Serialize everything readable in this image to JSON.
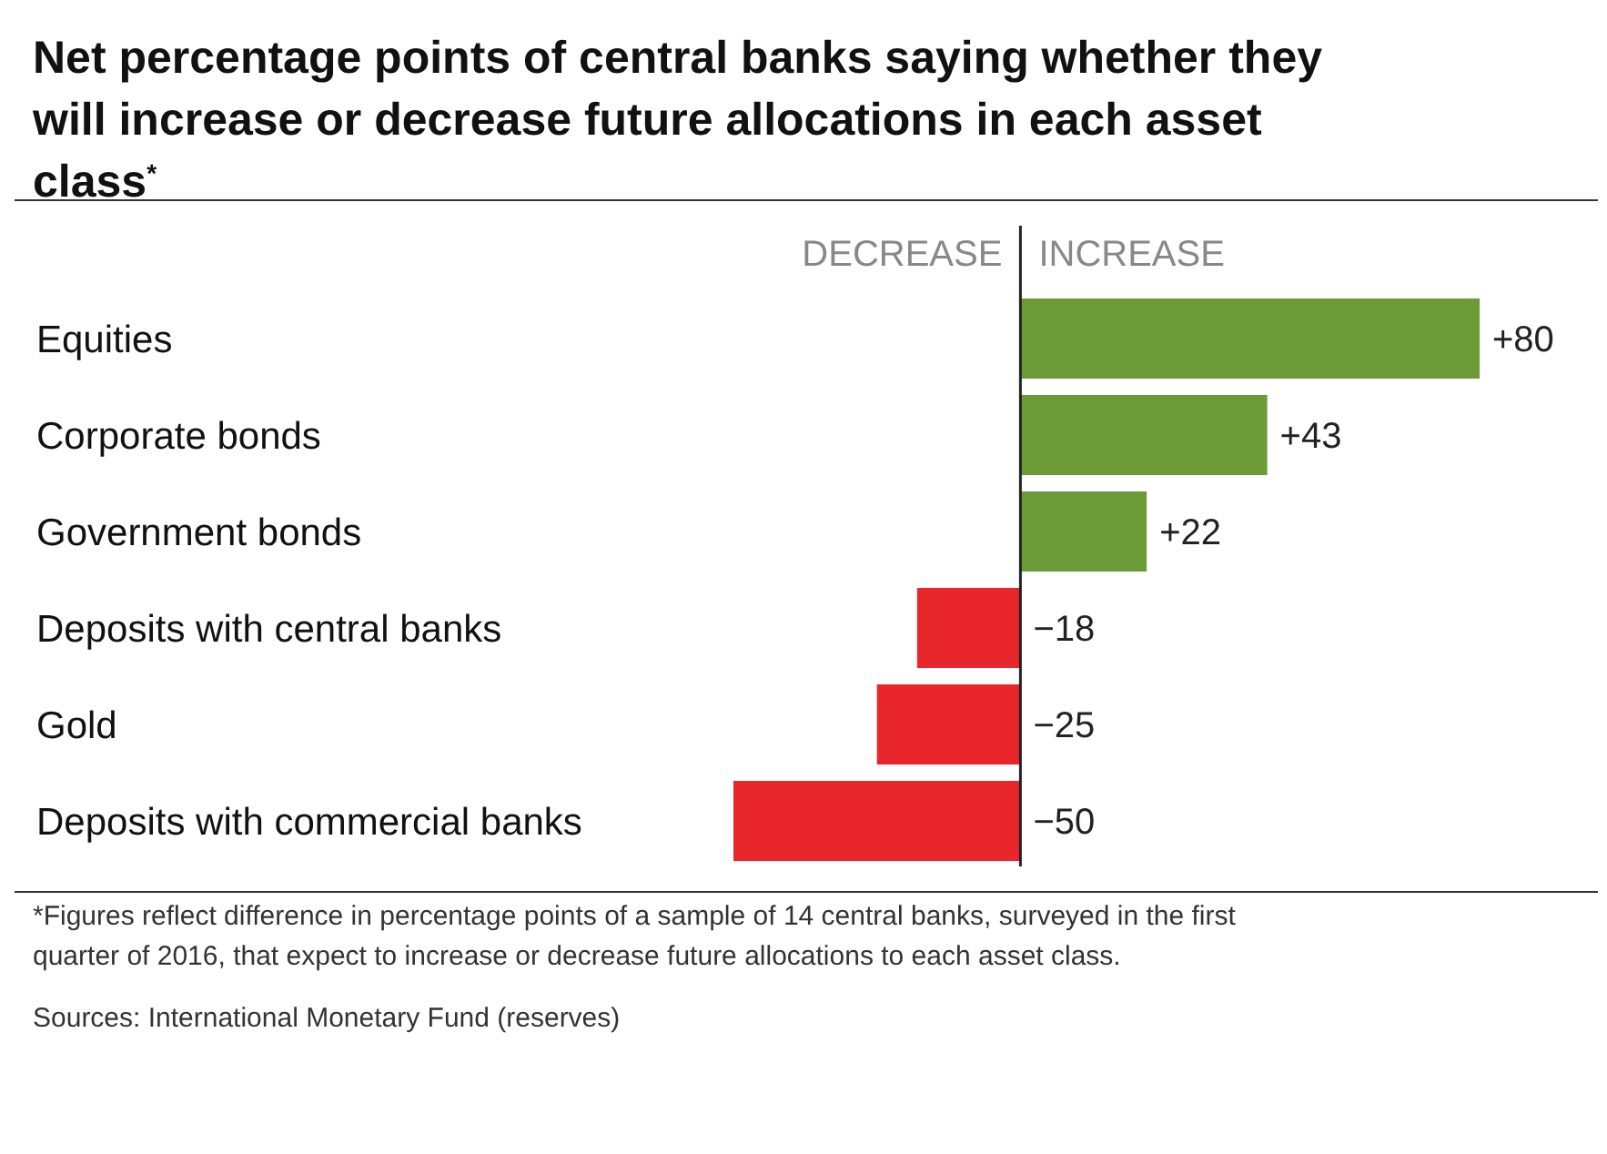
{
  "chart_data": {
    "type": "bar",
    "orientation": "horizontal",
    "title": "Net percentage points of central banks saying whether they will increase or decrease future allocations in each asset class$^{*}$",
    "categories": [
      "Equities",
      "Corporate bonds",
      "Government bonds",
      "Deposits with central banks",
      "Gold",
      "Deposits with commercial banks"
    ],
    "values": [
      80,
      43,
      22,
      -18,
      -25,
      -50
    ],
    "colors": [
      "#6b9b37",
      "#6b9b37",
      "#6b9b37",
      "#e8262c",
      "#e8262c",
      "#e8262c"
    ],
    "value_labels": [
      "+80",
      "+43",
      "+22",
      "−18",
      "−25",
      "−50"
    ],
    "annotations": [
      "DECREASE",
      "INCREASE",
      "*Figures reflect difference in percentage points of a sample of 14 central banks, surveyed in the first quarter of 2016, that expect to increase or decrease future allocations to each asset class.",
      "Sources: International Monetary Fund (reserves)"
    ]
  }
}
